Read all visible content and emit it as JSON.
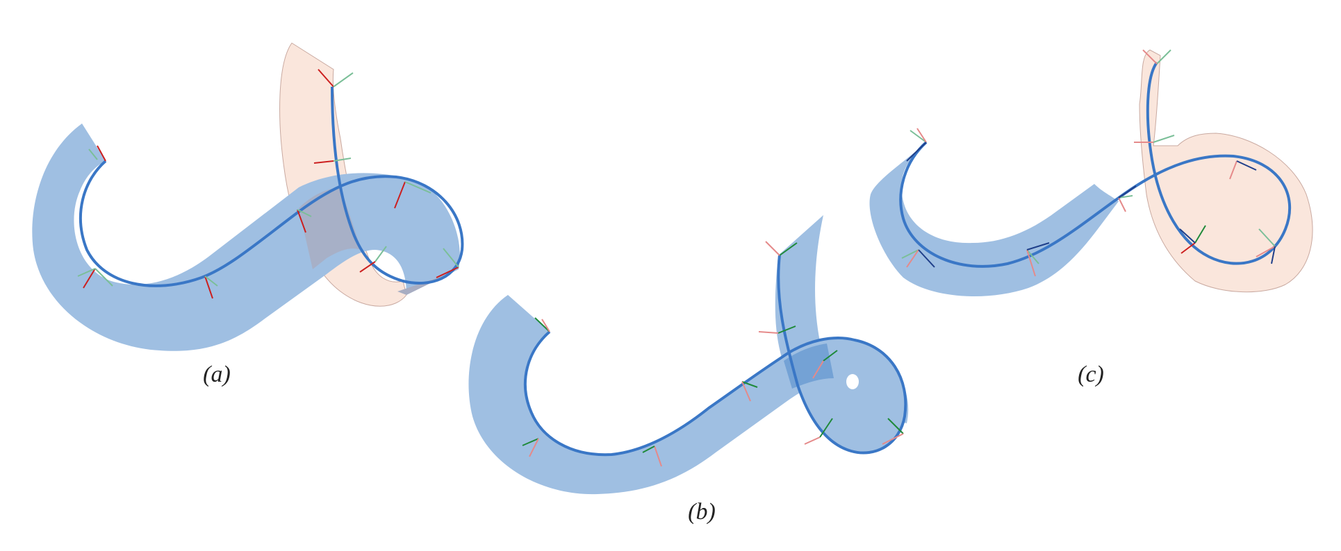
{
  "figure": {
    "captions": {
      "a": "(a)",
      "b": "(b)",
      "c": "(c)"
    }
  },
  "colors": {
    "ribbon_front": "#9fbfe2",
    "ribbon_back": "#fae6dc",
    "overlap": "#a8adc2",
    "curve": "#3a77c6",
    "normal_red": "#cc1f1f",
    "normal_green": "#1f8a3a",
    "frame_light_green": "#7bbf98",
    "frame_light_red": "#e58a8a",
    "frame_dark_blue": "#1f3f8a"
  },
  "panels": [
    {
      "id": "a",
      "description_free": true
    },
    {
      "id": "b",
      "description_free": true
    },
    {
      "id": "c",
      "description_free": true
    }
  ]
}
